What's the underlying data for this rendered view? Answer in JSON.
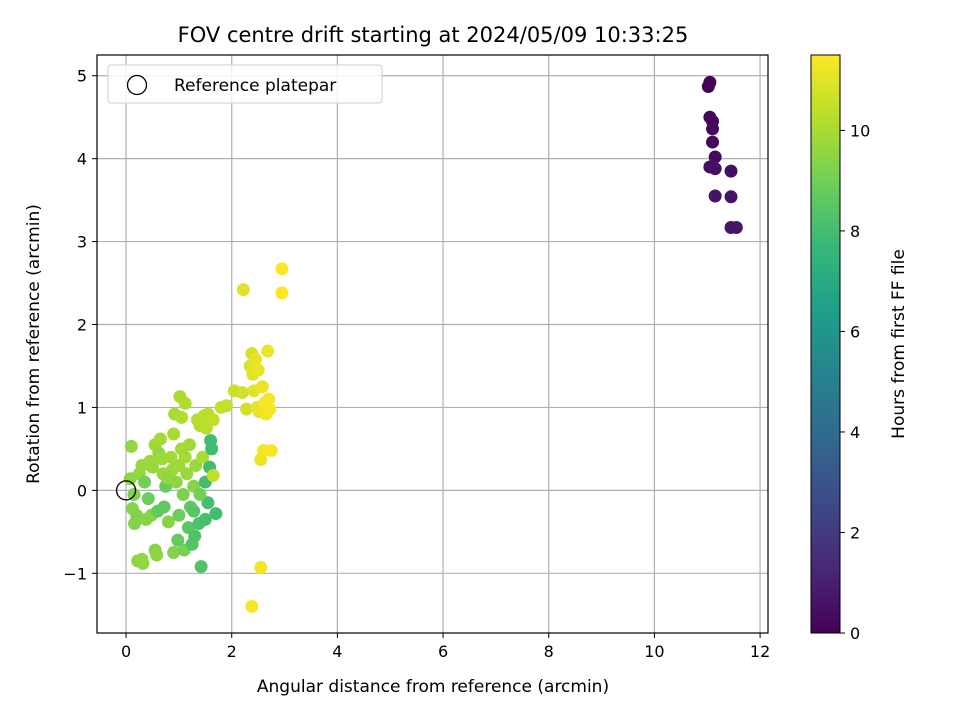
{
  "chart_data": {
    "type": "scatter",
    "title": "FOV centre drift starting at 2024/05/09 10:33:25",
    "xlabel": "Angular distance from reference (arcmin)",
    "ylabel": "Rotation from reference (arcmin)",
    "xlim": [
      -0.55,
      12.15
    ],
    "ylim": [
      -1.72,
      5.25
    ],
    "xticks": [
      0,
      2,
      4,
      6,
      8,
      10,
      12
    ],
    "yticks": [
      -1,
      0,
      1,
      2,
      3,
      4,
      5
    ],
    "grid": true,
    "legend": {
      "position": "upper-left",
      "entries": [
        "Reference platepar"
      ]
    },
    "reference_point": {
      "x": 0,
      "y": 0
    },
    "colorbar": {
      "label": "Hours from first FF file",
      "range": [
        0,
        11.5
      ],
      "ticks": [
        0,
        2,
        4,
        6,
        8,
        10
      ],
      "colormap": "viridis",
      "colors": [
        "#440154",
        "#482878",
        "#3e4989",
        "#31688e",
        "#26828e",
        "#1f9e89",
        "#35b779",
        "#6ece58",
        "#b5de2b",
        "#fde725"
      ]
    },
    "points": [
      {
        "x": 11.05,
        "y": 4.92,
        "c": 0.1
      },
      {
        "x": 11.02,
        "y": 4.87,
        "c": 0.1
      },
      {
        "x": 11.05,
        "y": 4.5,
        "c": 0.2
      },
      {
        "x": 11.1,
        "y": 4.45,
        "c": 0.2
      },
      {
        "x": 11.1,
        "y": 4.36,
        "c": 0.3
      },
      {
        "x": 11.1,
        "y": 4.2,
        "c": 0.3
      },
      {
        "x": 11.15,
        "y": 4.02,
        "c": 0.4
      },
      {
        "x": 11.05,
        "y": 3.9,
        "c": 0.4
      },
      {
        "x": 11.15,
        "y": 3.88,
        "c": 0.5
      },
      {
        "x": 11.45,
        "y": 3.85,
        "c": 0.5
      },
      {
        "x": 11.15,
        "y": 3.55,
        "c": 0.6
      },
      {
        "x": 11.45,
        "y": 3.54,
        "c": 0.6
      },
      {
        "x": 11.45,
        "y": 3.17,
        "c": 0.7
      },
      {
        "x": 11.55,
        "y": 3.17,
        "c": 0.7
      },
      {
        "x": 0.1,
        "y": 0.53,
        "c": 9.6
      },
      {
        "x": 0.08,
        "y": 0.14,
        "c": 9.5
      },
      {
        "x": 0.15,
        "y": -0.05,
        "c": 9.2
      },
      {
        "x": 0.12,
        "y": -0.22,
        "c": 9.4
      },
      {
        "x": 0.16,
        "y": -0.4,
        "c": 9.3
      },
      {
        "x": 0.22,
        "y": -0.85,
        "c": 9.5
      },
      {
        "x": 0.3,
        "y": -0.83,
        "c": 9.6
      },
      {
        "x": 0.32,
        "y": -0.88,
        "c": 9.6
      },
      {
        "x": 0.25,
        "y": 0.2,
        "c": 9.6
      },
      {
        "x": 0.3,
        "y": 0.3,
        "c": 9.7
      },
      {
        "x": 0.35,
        "y": 0.1,
        "c": 9.0
      },
      {
        "x": 0.38,
        "y": -0.35,
        "c": 9.4
      },
      {
        "x": 0.42,
        "y": -0.1,
        "c": 8.9
      },
      {
        "x": 0.45,
        "y": 0.35,
        "c": 9.8
      },
      {
        "x": 0.5,
        "y": 0.28,
        "c": 9.7
      },
      {
        "x": 0.55,
        "y": -0.72,
        "c": 9.4
      },
      {
        "x": 0.58,
        "y": -0.78,
        "c": 9.5
      },
      {
        "x": 0.55,
        "y": 0.55,
        "c": 9.8
      },
      {
        "x": 0.62,
        "y": 0.45,
        "c": 9.6
      },
      {
        "x": 0.65,
        "y": 0.62,
        "c": 9.9
      },
      {
        "x": 0.7,
        "y": 0.2,
        "c": 9.7
      },
      {
        "x": 0.72,
        "y": -0.2,
        "c": 8.6
      },
      {
        "x": 0.75,
        "y": 0.05,
        "c": 8.8
      },
      {
        "x": 0.8,
        "y": -0.38,
        "c": 9.4
      },
      {
        "x": 0.85,
        "y": 0.4,
        "c": 9.9
      },
      {
        "x": 0.88,
        "y": 0.25,
        "c": 9.7
      },
      {
        "x": 0.9,
        "y": 0.68,
        "c": 10.0
      },
      {
        "x": 0.9,
        "y": -0.75,
        "c": 9.3
      },
      {
        "x": 0.92,
        "y": 0.92,
        "c": 10.0
      },
      {
        "x": 0.95,
        "y": 0.1,
        "c": 9.5
      },
      {
        "x": 1.0,
        "y": 0.3,
        "c": 9.8
      },
      {
        "x": 1.0,
        "y": -0.3,
        "c": 8.9
      },
      {
        "x": 1.02,
        "y": 1.13,
        "c": 10.0
      },
      {
        "x": 1.05,
        "y": 0.88,
        "c": 10.1
      },
      {
        "x": 1.05,
        "y": 0.5,
        "c": 9.9
      },
      {
        "x": 1.08,
        "y": -0.05,
        "c": 9.2
      },
      {
        "x": 1.1,
        "y": -0.72,
        "c": 9.1
      },
      {
        "x": 1.12,
        "y": 1.05,
        "c": 10.1
      },
      {
        "x": 1.15,
        "y": 0.2,
        "c": 9.7
      },
      {
        "x": 1.18,
        "y": -0.45,
        "c": 8.5
      },
      {
        "x": 1.2,
        "y": 0.55,
        "c": 9.9
      },
      {
        "x": 1.22,
        "y": -0.2,
        "c": 8.6
      },
      {
        "x": 1.25,
        "y": -0.65,
        "c": 8.4
      },
      {
        "x": 1.28,
        "y": 0.05,
        "c": 9.4
      },
      {
        "x": 1.3,
        "y": -0.55,
        "c": 8.3
      },
      {
        "x": 1.32,
        "y": 0.3,
        "c": 9.7
      },
      {
        "x": 1.35,
        "y": 0.85,
        "c": 10.2
      },
      {
        "x": 1.38,
        "y": -0.4,
        "c": 8.2
      },
      {
        "x": 1.4,
        "y": 0.78,
        "c": 10.2
      },
      {
        "x": 1.42,
        "y": -0.92,
        "c": 8.3
      },
      {
        "x": 1.45,
        "y": 0.4,
        "c": 10.0
      },
      {
        "x": 1.48,
        "y": 0.9,
        "c": 10.3
      },
      {
        "x": 1.5,
        "y": -0.35,
        "c": 8.1
      },
      {
        "x": 1.5,
        "y": 0.1,
        "c": 8.0
      },
      {
        "x": 1.52,
        "y": 0.75,
        "c": 10.3
      },
      {
        "x": 1.55,
        "y": 0.92,
        "c": 10.3
      },
      {
        "x": 1.55,
        "y": -0.15,
        "c": 8.0
      },
      {
        "x": 1.58,
        "y": 0.28,
        "c": 8.0
      },
      {
        "x": 1.6,
        "y": 0.6,
        "c": 7.9
      },
      {
        "x": 1.62,
        "y": 0.5,
        "c": 7.9
      },
      {
        "x": 1.65,
        "y": 0.18,
        "c": 10.4
      },
      {
        "x": 1.65,
        "y": 0.85,
        "c": 10.4
      },
      {
        "x": 1.7,
        "y": -0.28,
        "c": 8.0
      },
      {
        "x": 1.8,
        "y": 1.0,
        "c": 10.5
      },
      {
        "x": 1.9,
        "y": 1.02,
        "c": 10.5
      },
      {
        "x": 0.2,
        "y": -0.3,
        "c": 9.3
      },
      {
        "x": 0.48,
        "y": -0.3,
        "c": 9.4
      },
      {
        "x": 0.68,
        "y": 0.38,
        "c": 9.8
      },
      {
        "x": 0.78,
        "y": 0.15,
        "c": 9.6
      },
      {
        "x": 1.12,
        "y": 0.4,
        "c": 9.9
      },
      {
        "x": 1.28,
        "y": -0.25,
        "c": 8.5
      },
      {
        "x": 1.4,
        "y": -0.05,
        "c": 9.0
      },
      {
        "x": 0.98,
        "y": -0.6,
        "c": 8.7
      },
      {
        "x": 0.6,
        "y": -0.25,
        "c": 8.7
      },
      {
        "x": 2.05,
        "y": 1.2,
        "c": 10.6
      },
      {
        "x": 2.2,
        "y": 1.18,
        "c": 10.7
      },
      {
        "x": 2.22,
        "y": 2.42,
        "c": 11.0
      },
      {
        "x": 2.28,
        "y": 0.98,
        "c": 10.7
      },
      {
        "x": 2.35,
        "y": 1.5,
        "c": 10.9
      },
      {
        "x": 2.38,
        "y": 1.65,
        "c": 10.8
      },
      {
        "x": 2.4,
        "y": 1.4,
        "c": 11.0
      },
      {
        "x": 2.42,
        "y": 1.2,
        "c": 11.0
      },
      {
        "x": 2.45,
        "y": 1.58,
        "c": 11.1
      },
      {
        "x": 2.48,
        "y": 1.0,
        "c": 11.1
      },
      {
        "x": 2.5,
        "y": 1.45,
        "c": 11.2
      },
      {
        "x": 2.52,
        "y": 0.95,
        "c": 11.1
      },
      {
        "x": 2.55,
        "y": 0.37,
        "c": 11.2
      },
      {
        "x": 2.55,
        "y": -0.93,
        "c": 11.3
      },
      {
        "x": 2.58,
        "y": 1.25,
        "c": 11.2
      },
      {
        "x": 2.6,
        "y": 0.48,
        "c": 11.3
      },
      {
        "x": 2.62,
        "y": 1.05,
        "c": 11.3
      },
      {
        "x": 2.65,
        "y": 0.92,
        "c": 11.3
      },
      {
        "x": 2.68,
        "y": 1.68,
        "c": 11.2
      },
      {
        "x": 2.7,
        "y": 1.1,
        "c": 11.4
      },
      {
        "x": 2.72,
        "y": 0.98,
        "c": 11.4
      },
      {
        "x": 2.75,
        "y": 0.48,
        "c": 11.4
      },
      {
        "x": 2.38,
        "y": -1.4,
        "c": 11.4
      },
      {
        "x": 2.95,
        "y": 2.67,
        "c": 11.5
      },
      {
        "x": 2.95,
        "y": 2.38,
        "c": 11.5
      }
    ]
  }
}
